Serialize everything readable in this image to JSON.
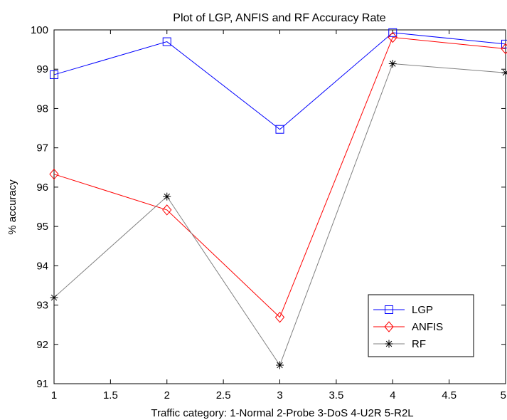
{
  "chart_data": {
    "type": "line",
    "title": "Plot of LGP, ANFIS and RF Accuracy Rate",
    "xlabel": "Traffic category:  1-Normal  2-Probe  3-DoS  4-U2R  5-R2L",
    "ylabel": "% accuracy",
    "xlim": [
      1,
      5
    ],
    "ylim": [
      91,
      100
    ],
    "xticks": [
      1,
      1.5,
      2,
      2.5,
      3,
      3.5,
      4,
      4.5,
      5
    ],
    "yticks": [
      91,
      92,
      93,
      94,
      95,
      96,
      97,
      98,
      99,
      100
    ],
    "grid": false,
    "legend_position": "bottom-right",
    "x": [
      1,
      2,
      3,
      4,
      5
    ],
    "series": [
      {
        "name": "LGP",
        "color": "#0000ff",
        "marker": "square",
        "values": [
          98.86,
          99.7,
          97.47,
          99.93,
          99.64
        ]
      },
      {
        "name": "ANFIS",
        "color": "#ff0000",
        "marker": "diamond",
        "values": [
          96.33,
          95.42,
          92.69,
          99.81,
          99.52
        ]
      },
      {
        "name": "RF",
        "color": "#808080",
        "marker": "star",
        "values": [
          93.19,
          95.76,
          91.47,
          99.14,
          98.91
        ]
      }
    ]
  }
}
